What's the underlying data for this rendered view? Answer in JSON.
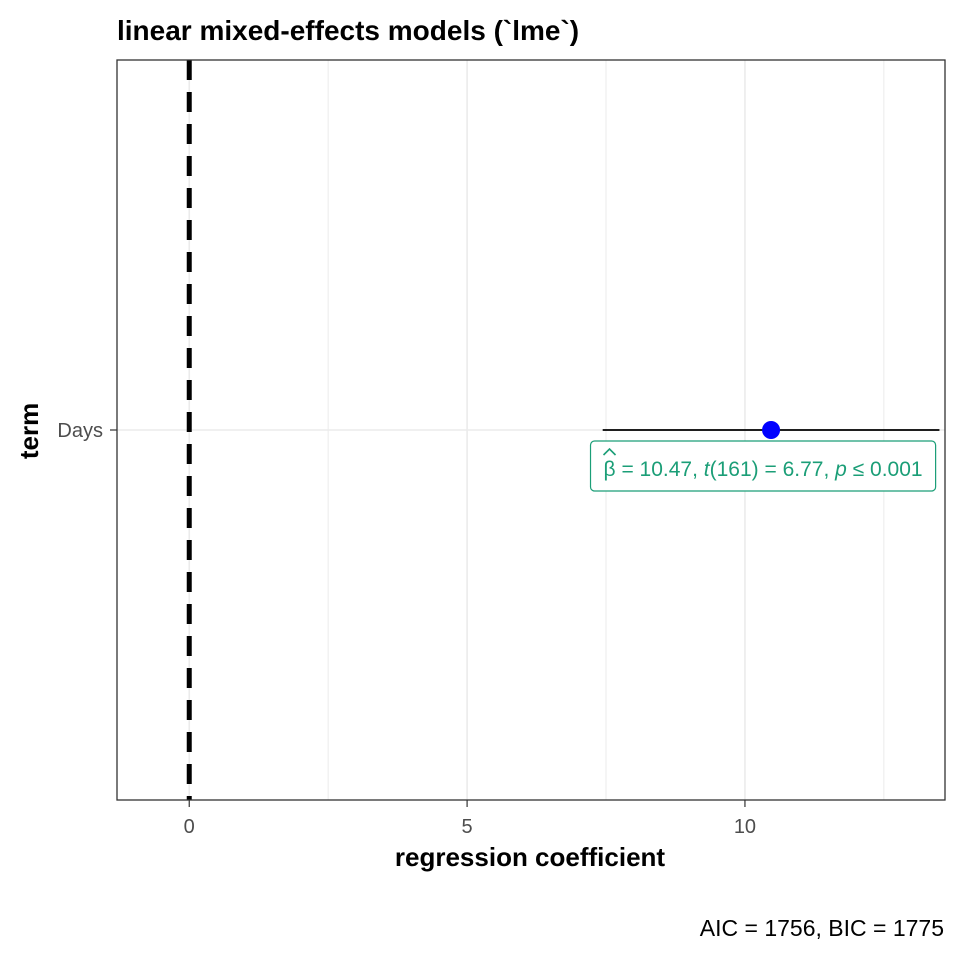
{
  "chart_data": {
    "type": "scatter",
    "title": "linear mixed-effects models (`lme`)",
    "xlabel": "regression coefficient",
    "ylabel": "term",
    "caption": "AIC = 1756, BIC = 1775",
    "xlim": [
      -1.3,
      13.6
    ],
    "x_ticks": [
      0,
      5,
      10
    ],
    "x_tick_labels": [
      "0",
      "5",
      "10"
    ],
    "terms": [
      "Days"
    ],
    "points": [
      {
        "term": "Days",
        "estimate": 10.47,
        "conf_low": 7.44,
        "conf_high": 13.5,
        "label": {
          "beta_symbol": "β",
          "beta_value": "10.47,",
          "t_symbol": "t",
          "t_df": "(161)",
          "t_value": "6.77,",
          "p_symbol": "p",
          "p_relation": "≤",
          "p_value": "0.001"
        }
      }
    ],
    "reference_line": 0,
    "grid": true,
    "colors": {
      "point": "#0000ff",
      "label": "#1b9e77",
      "errorbar": "#000000",
      "reference": "#000000",
      "grid": "#ebebeb"
    }
  }
}
